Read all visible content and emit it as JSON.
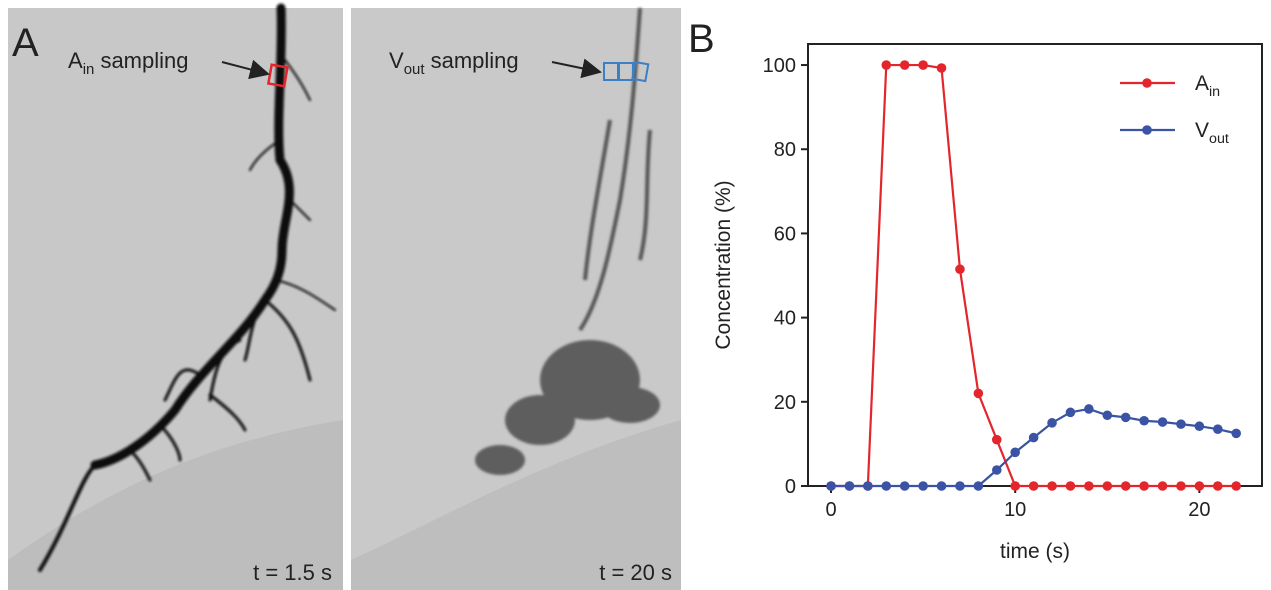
{
  "panel_a": {
    "label": "A",
    "image_1": {
      "annotation": "Ain sampling",
      "time": "t = 1.5 s"
    },
    "image_2": {
      "annotation": "Vout sampling",
      "time": "t = 20 s"
    }
  },
  "chart_data": {
    "type": "line",
    "panel_label": "B",
    "x_label": "time (s)",
    "y_label": "Concentration (%)",
    "x": [
      0,
      1,
      2,
      3,
      4,
      5,
      6,
      7,
      8,
      9,
      10,
      11,
      12,
      13,
      14,
      15,
      16,
      17,
      18,
      19,
      20,
      21,
      22
    ],
    "series": [
      {
        "name": "Ain",
        "color": "#e3262c",
        "values": [
          0,
          0,
          0,
          100,
          100,
          100,
          99.3,
          51.5,
          22,
          11,
          0,
          0,
          0,
          0,
          0,
          0,
          0,
          0,
          0,
          0,
          0,
          0,
          0
        ]
      },
      {
        "name": "Vout",
        "color": "#3b53a4",
        "values": [
          0,
          0,
          0,
          0,
          0,
          0,
          0,
          0,
          0,
          3.8,
          8,
          11.5,
          15,
          17.5,
          18.3,
          16.8,
          16.3,
          15.5,
          15.2,
          14.7,
          14.2,
          13.5,
          12.5
        ]
      }
    ],
    "xlim": [
      -1.25,
      23.4
    ],
    "ylim": [
      0,
      105
    ],
    "xticks": [
      0,
      10,
      20
    ],
    "yticks": [
      0,
      20,
      40,
      60,
      80,
      100
    ],
    "legend": "upper right",
    "markers": true
  }
}
